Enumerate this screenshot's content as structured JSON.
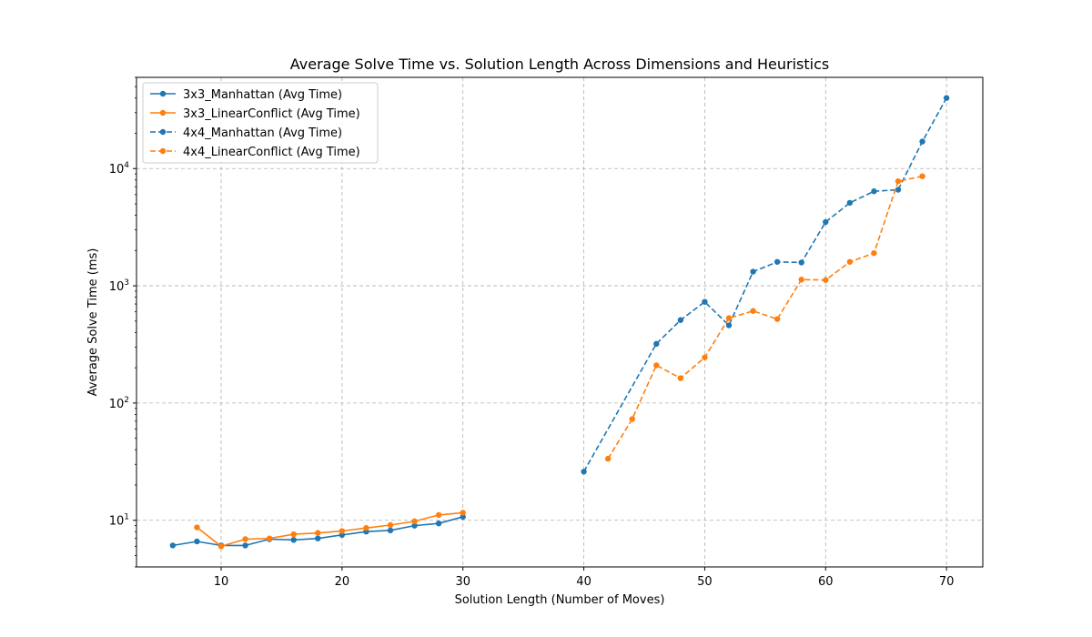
{
  "chart_data": {
    "type": "line",
    "title": "Average Solve Time vs. Solution Length Across Dimensions and Heuristics",
    "xlabel": "Solution Length (Number of Moves)",
    "ylabel": "Average Solve Time (ms)",
    "xlim": [
      3,
      73
    ],
    "ylim": [
      4,
      60000
    ],
    "yscale": "log",
    "grid": true,
    "legend_position": "top-left",
    "x_ticks": [
      10,
      20,
      30,
      40,
      50,
      60,
      70
    ],
    "y_ticks": [
      {
        "value": 10,
        "base": "10",
        "exp": "1"
      },
      {
        "value": 100,
        "base": "10",
        "exp": "2"
      },
      {
        "value": 1000,
        "base": "10",
        "exp": "3"
      },
      {
        "value": 10000,
        "base": "10",
        "exp": "4"
      }
    ],
    "series": [
      {
        "name": "3x3_Manhattan (Avg Time)",
        "color": "#1f77b4",
        "dashed": false,
        "points": [
          [
            6,
            6.1
          ],
          [
            8,
            6.6
          ],
          [
            10,
            6.1
          ],
          [
            12,
            6.1
          ],
          [
            14,
            6.9
          ],
          [
            16,
            6.8
          ],
          [
            18,
            7.0
          ],
          [
            20,
            7.5
          ],
          [
            22,
            8.0
          ],
          [
            24,
            8.2
          ],
          [
            26,
            9.0
          ],
          [
            28,
            9.4
          ],
          [
            30,
            10.7
          ]
        ]
      },
      {
        "name": "3x3_LinearConflict (Avg Time)",
        "color": "#ff7f0e",
        "dashed": false,
        "points": [
          [
            8,
            8.7
          ],
          [
            10,
            6.0
          ],
          [
            12,
            6.9
          ],
          [
            14,
            7.0
          ],
          [
            16,
            7.6
          ],
          [
            18,
            7.8
          ],
          [
            20,
            8.1
          ],
          [
            22,
            8.6
          ],
          [
            24,
            9.1
          ],
          [
            26,
            9.8
          ],
          [
            28,
            11.1
          ],
          [
            30,
            11.6
          ]
        ]
      },
      {
        "name": "4x4_Manhattan (Avg Time)",
        "color": "#1f77b4",
        "dashed": true,
        "points": [
          [
            40,
            26
          ],
          [
            46,
            320
          ],
          [
            48,
            510
          ],
          [
            50,
            730
          ],
          [
            52,
            460
          ],
          [
            54,
            1320
          ],
          [
            56,
            1600
          ],
          [
            58,
            1580
          ],
          [
            60,
            3500
          ],
          [
            62,
            5100
          ],
          [
            64,
            6400
          ],
          [
            66,
            6600
          ],
          [
            68,
            17000
          ],
          [
            70,
            40000
          ]
        ]
      },
      {
        "name": "4x4_LinearConflict (Avg Time)",
        "color": "#ff7f0e",
        "dashed": true,
        "points": [
          [
            42,
            33.5
          ],
          [
            44,
            73
          ],
          [
            46,
            210
          ],
          [
            48,
            163
          ],
          [
            50,
            245
          ],
          [
            52,
            530
          ],
          [
            54,
            610
          ],
          [
            56,
            520
          ],
          [
            58,
            1130
          ],
          [
            60,
            1120
          ],
          [
            62,
            1600
          ],
          [
            64,
            1900
          ],
          [
            66,
            7800
          ],
          [
            68,
            8600
          ]
        ]
      }
    ]
  }
}
